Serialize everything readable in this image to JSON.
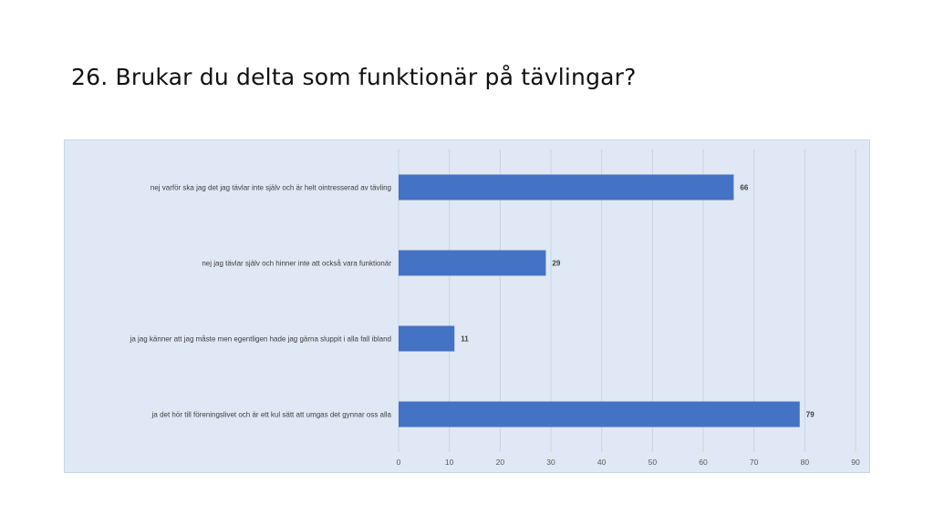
{
  "slide": {
    "title": "26. Brukar du delta som funktionär på tävlingar?"
  },
  "colors": {
    "bar": "#4472c4",
    "plot_background": "#dfe8f4",
    "gridline": "#c8d4e4"
  },
  "chart_data": {
    "type": "bar",
    "orientation": "horizontal",
    "categories": [
      "nej varför ska jag det jag tävlar inte själv och är helt ointresserad av tävling",
      "nej jag tävlar själv och hinner inte att också vara funktionär",
      "ja jag känner att jag måste men egentligen hade jag gärna sluppit i alla fall ibland",
      "ja det hör till föreningslivet och är ett kul sätt att umgas det gynnar oss alla"
    ],
    "values": [
      66,
      29,
      11,
      79
    ],
    "data_labels": [
      "66",
      "29",
      "11",
      "79"
    ],
    "xlim": [
      0,
      90
    ],
    "x_ticks": [
      "0",
      "10",
      "20",
      "30",
      "40",
      "50",
      "60",
      "70",
      "80",
      "90"
    ],
    "grid": true,
    "legend": "none",
    "title": "",
    "xlabel": "",
    "ylabel": ""
  }
}
